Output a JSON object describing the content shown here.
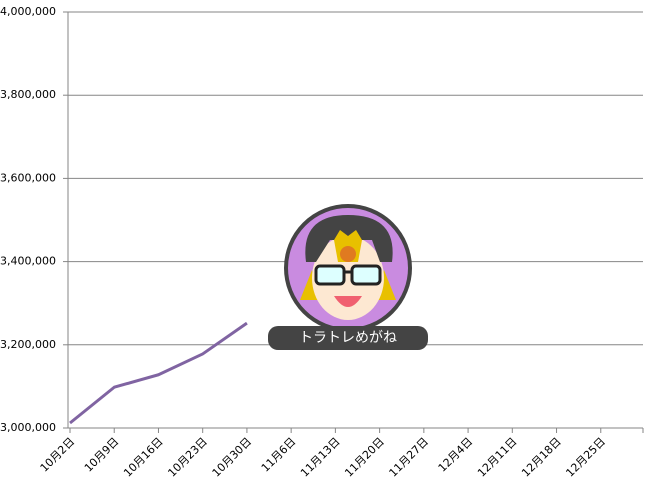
{
  "chart_data": {
    "type": "line",
    "categories": [
      "10月2日",
      "10月9日",
      "10月16日",
      "10月23日",
      "10月30日",
      "11月6日",
      "11月13日",
      "11月20日",
      "11月27日",
      "12月4日",
      "12月11日",
      "12月18日",
      "12月25日"
    ],
    "series": [
      {
        "name": "",
        "color": "#8064a2",
        "values": [
          3012000,
          3098000,
          3128000,
          3178000,
          3252000,
          null,
          null,
          null,
          null,
          null,
          null,
          null,
          null
        ]
      }
    ],
    "ylim": [
      3000000,
      4000000
    ],
    "yticks": [
      {
        "value": 3000000,
        "label": "3,000,000"
      },
      {
        "value": 3200000,
        "label": "3,200,000"
      },
      {
        "value": 3400000,
        "label": "3,400,000"
      },
      {
        "value": 3600000,
        "label": "3,600,000"
      },
      {
        "value": 3800000,
        "label": "3,800,000"
      },
      {
        "value": 4000000,
        "label": "4,000,000"
      }
    ],
    "grid": true
  },
  "badge": {
    "text": "トラトレめがね"
  }
}
